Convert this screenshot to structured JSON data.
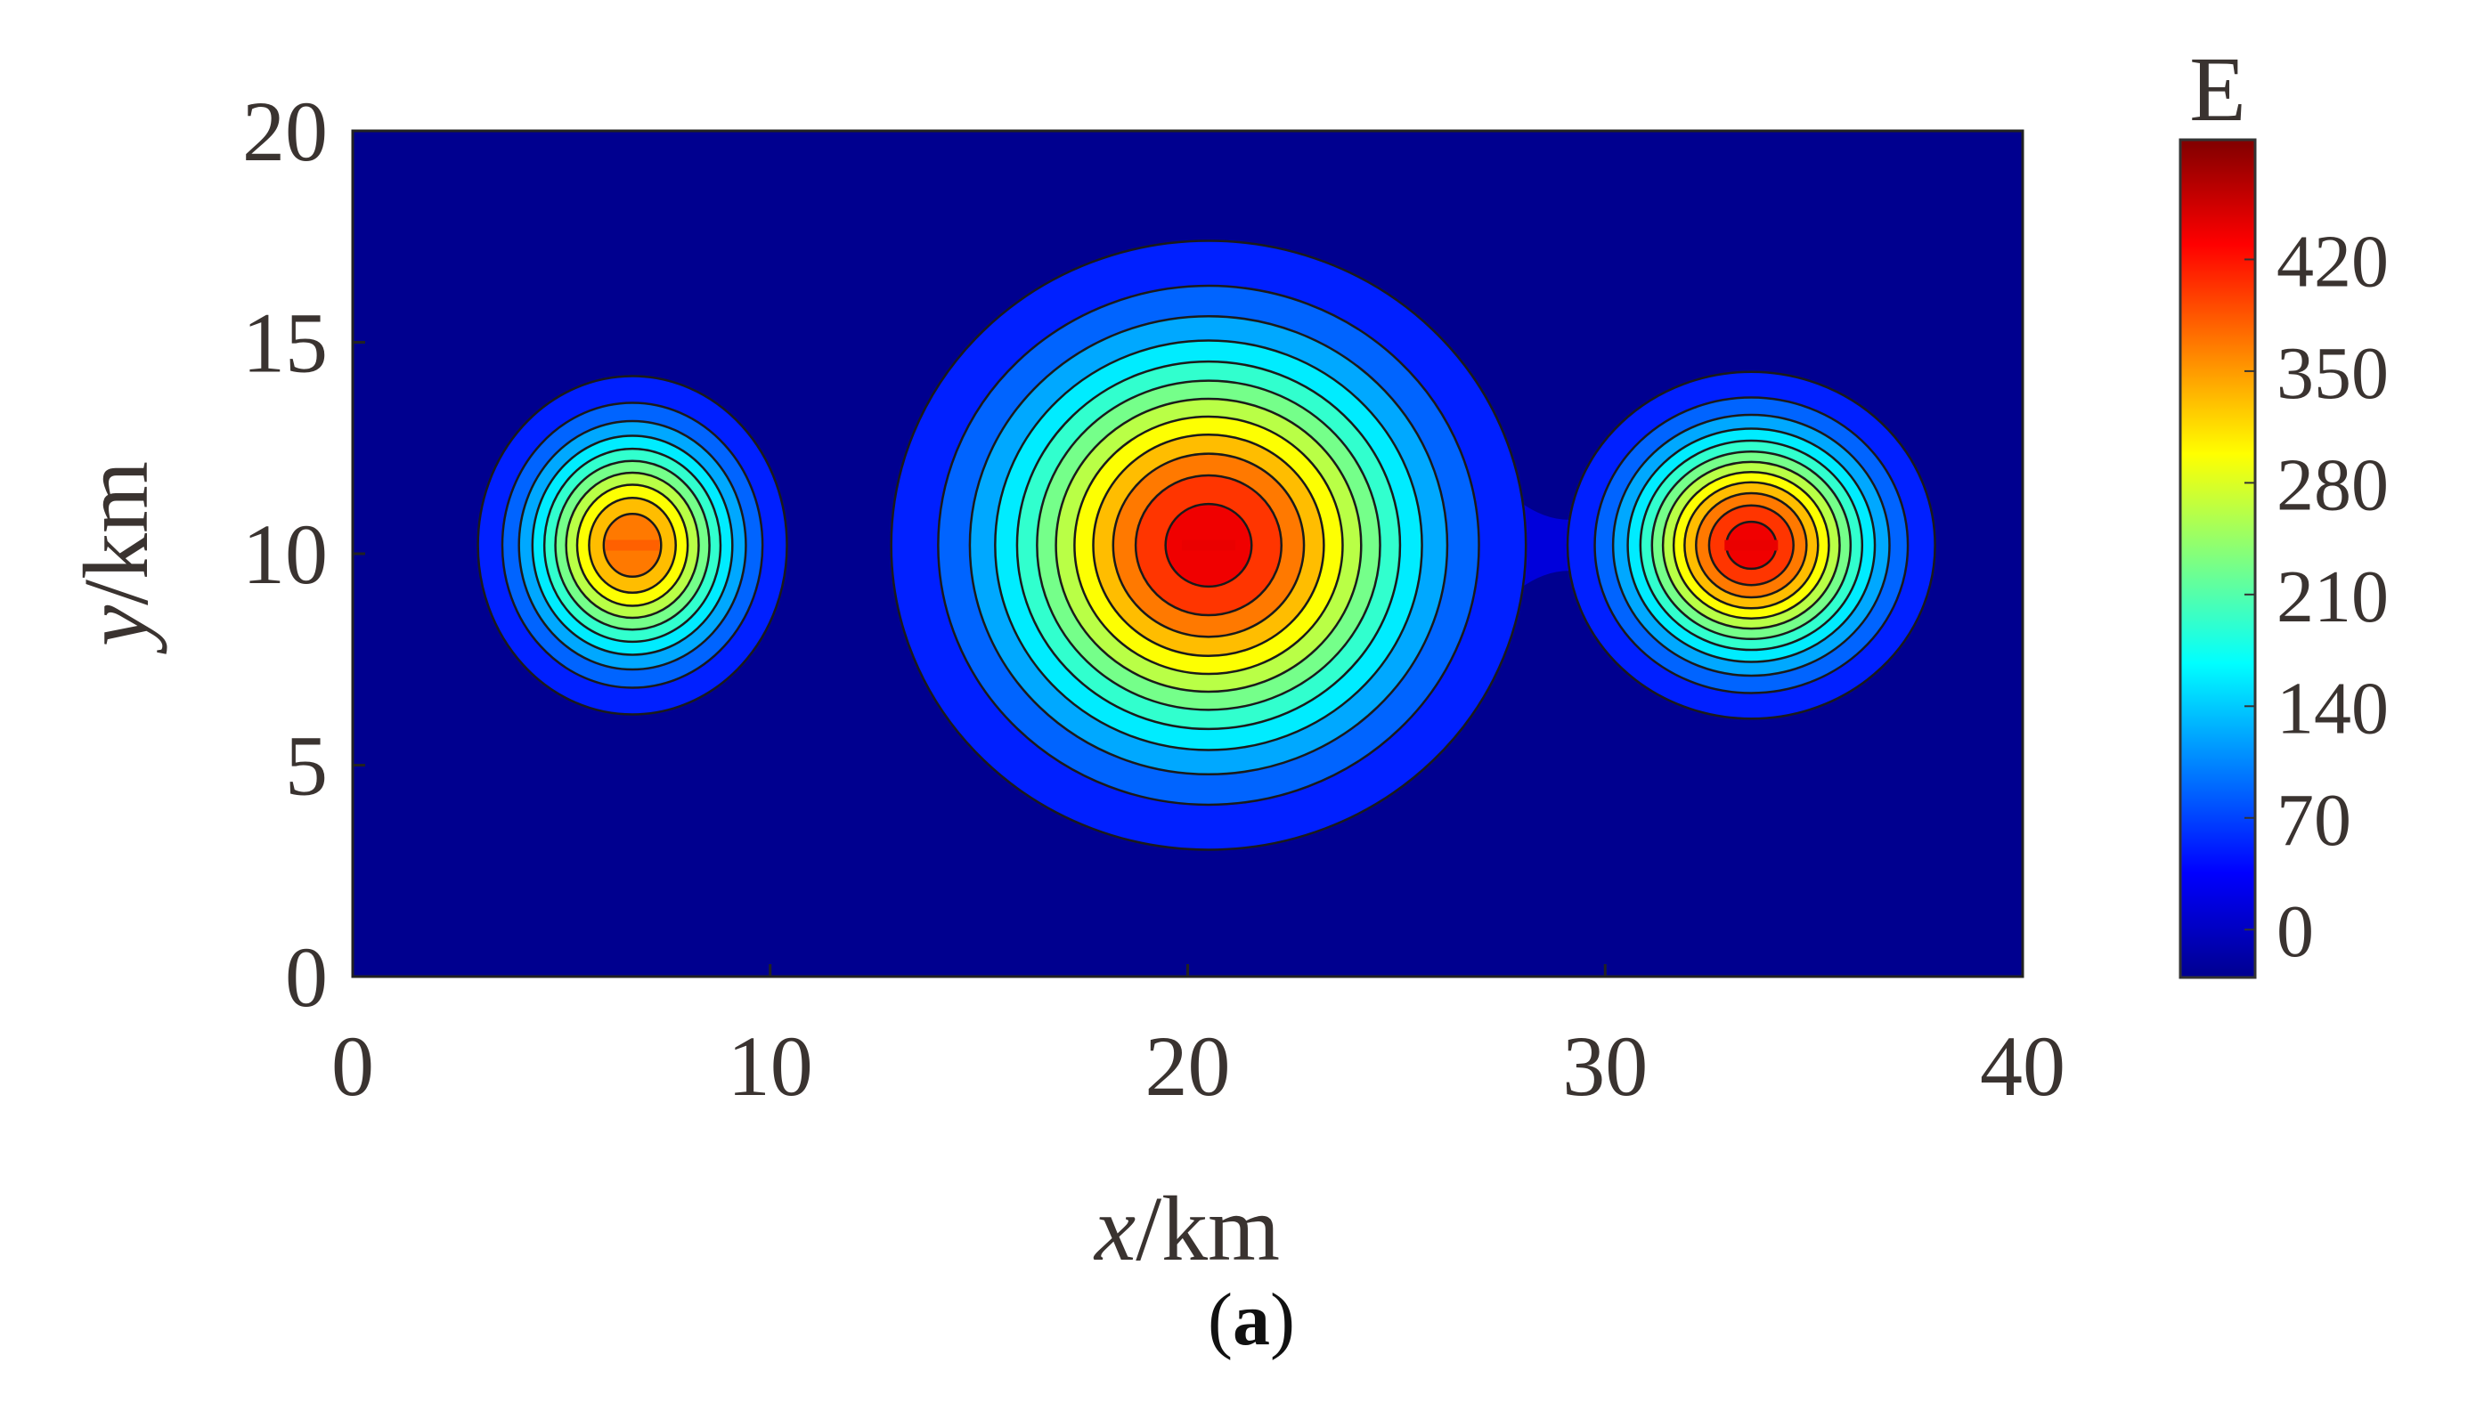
{
  "chart_data": {
    "type": "heatmap",
    "subtype": "filled-contour",
    "xlabel": "x/km",
    "ylabel": "y/km",
    "xlim": [
      0,
      40
    ],
    "ylim": [
      0,
      20
    ],
    "xticks": [
      0,
      10,
      20,
      30,
      40
    ],
    "yticks": [
      0,
      5,
      10,
      15,
      20
    ],
    "grid": false,
    "colormap": "jet",
    "colorbar": {
      "title": "E",
      "range": [
        -30,
        495
      ],
      "ticks": [
        0,
        70,
        140,
        210,
        280,
        350,
        420
      ],
      "placement": "right"
    },
    "contour_levels": [
      0,
      35,
      70,
      105,
      140,
      175,
      210,
      245,
      280,
      315,
      350,
      385,
      420,
      455
    ],
    "sources": [
      {
        "x": 6.7,
        "y": 10.2,
        "peak": 380
      },
      {
        "x": 20.5,
        "y": 10.2,
        "peak": 440
      },
      {
        "x": 33.5,
        "y": 10.2,
        "peak": 440
      }
    ],
    "panel_label": "(a)"
  }
}
